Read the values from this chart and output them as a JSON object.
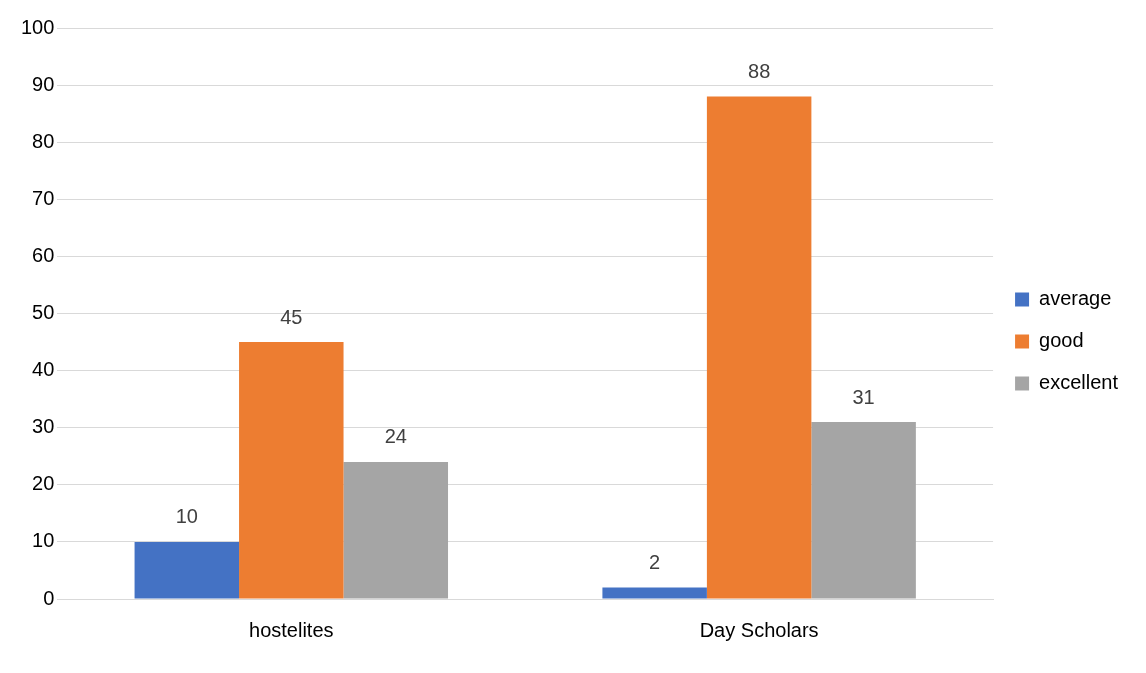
{
  "chart_data": {
    "type": "bar",
    "categories": [
      "hostelites",
      "Day Scholars"
    ],
    "series": [
      {
        "name": "average",
        "color": "#4472c4",
        "values": [
          10,
          2
        ]
      },
      {
        "name": "good",
        "color": "#ed7d31",
        "values": [
          45,
          88
        ]
      },
      {
        "name": "excellent",
        "color": "#a5a5a5",
        "values": [
          24,
          31
        ]
      }
    ],
    "ylim": [
      0,
      100
    ],
    "yticks": [
      0,
      10,
      20,
      30,
      40,
      50,
      60,
      70,
      80,
      90,
      100
    ],
    "grid": "y",
    "legend": "right",
    "data_labels": true
  }
}
